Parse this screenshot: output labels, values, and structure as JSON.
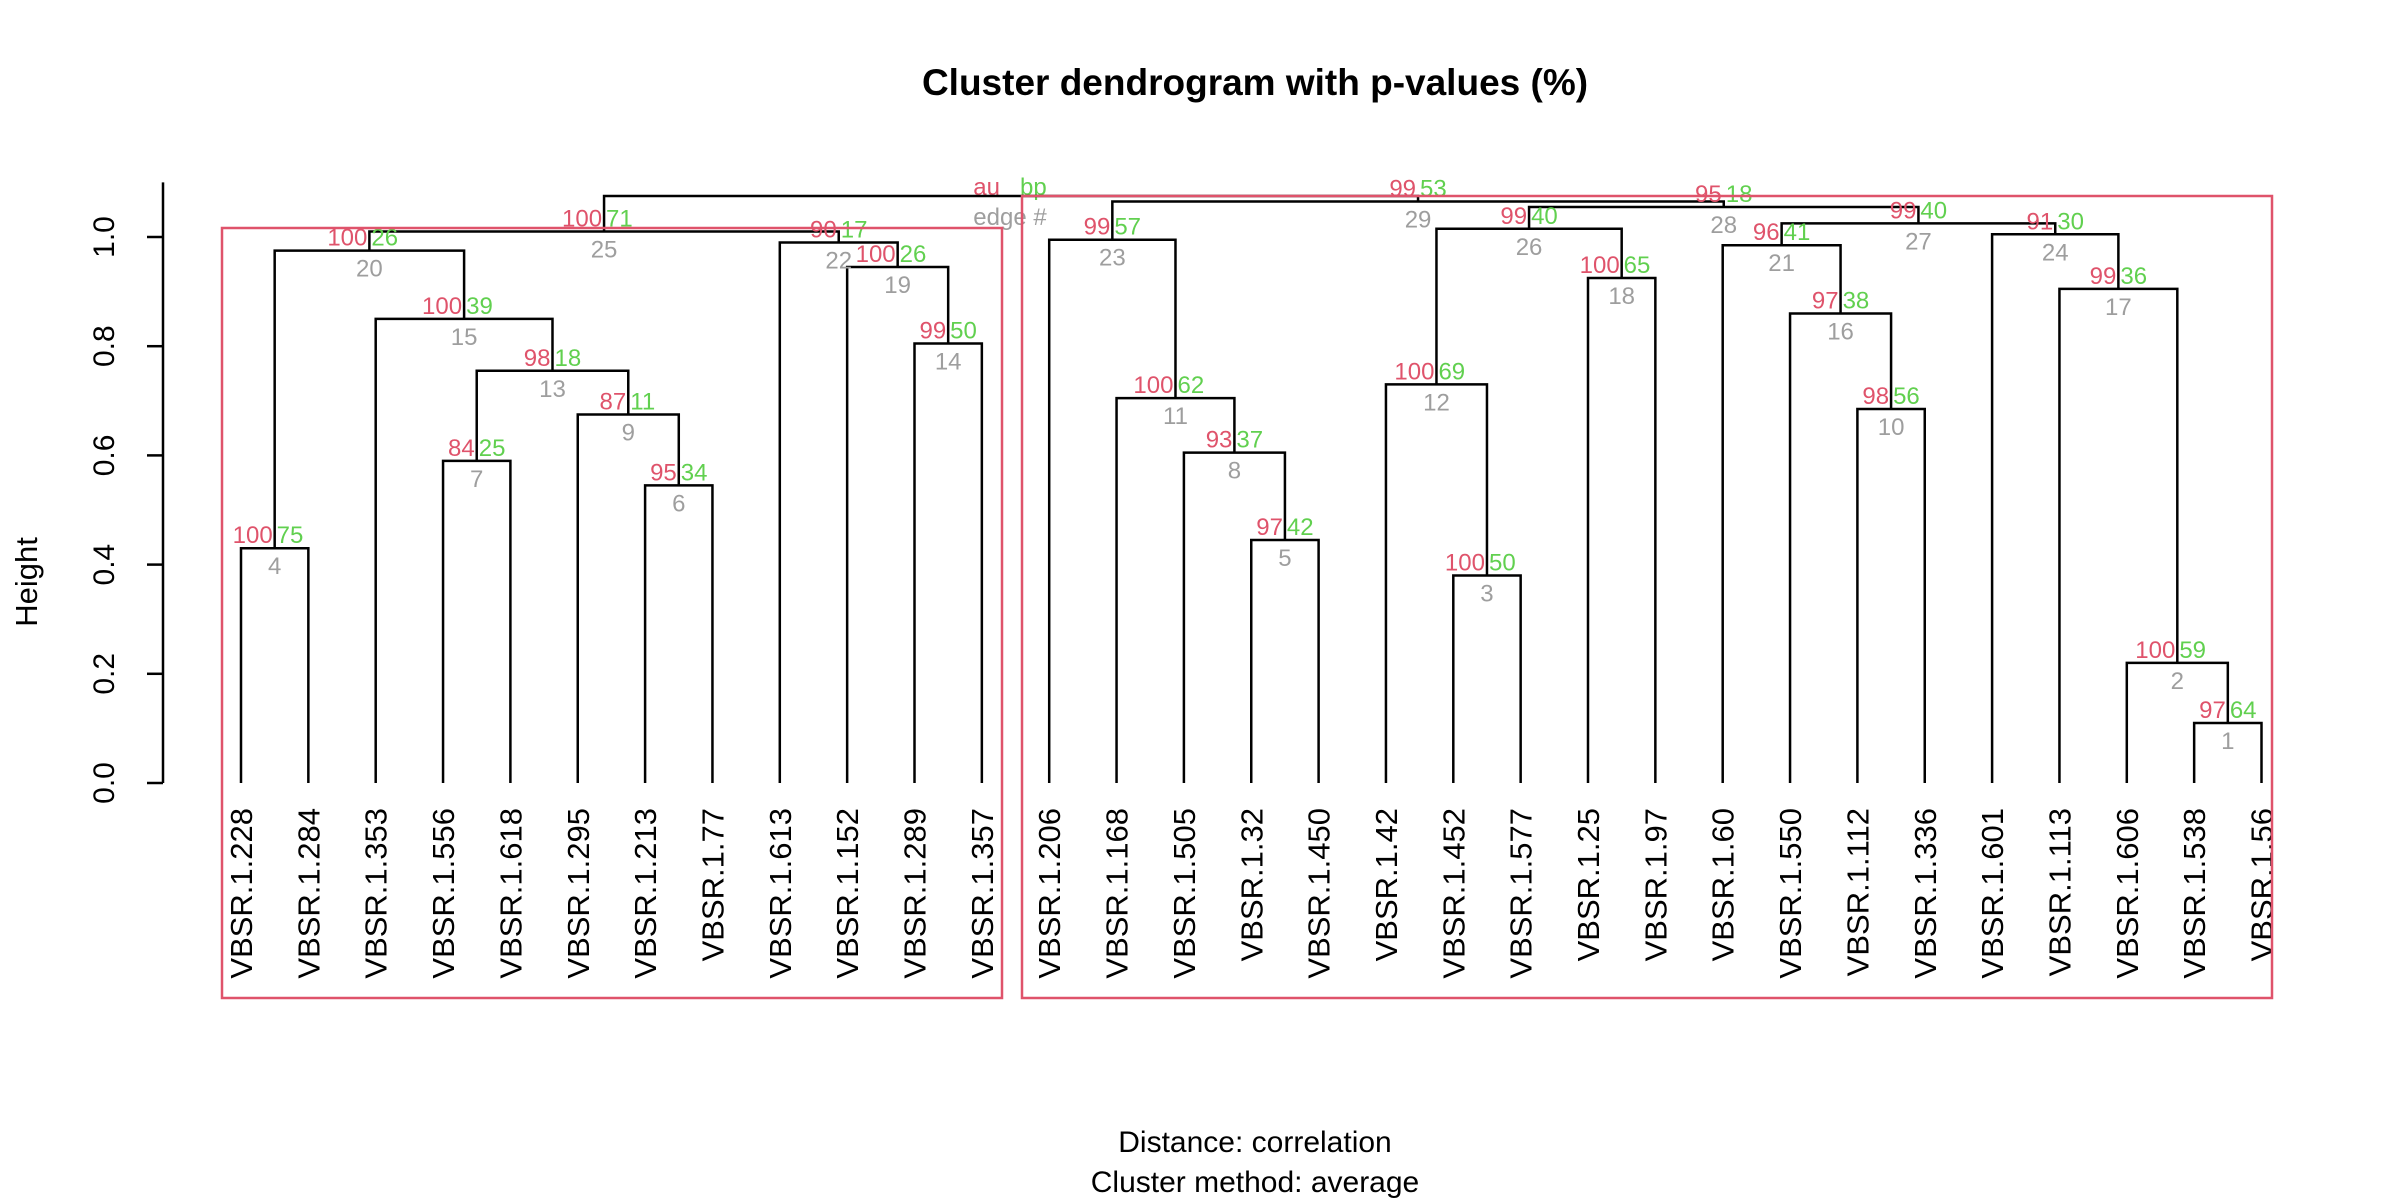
{
  "chart_data": {
    "type": "dendrogram",
    "title": "Cluster dendrogram with p-values (%)",
    "ylabel": "Height",
    "distance_label": "Distance:  correlation",
    "method_label": "Cluster method: average",
    "ylim": [
      0,
      1.1
    ],
    "yticks": [
      "0.0",
      "0.2",
      "0.4",
      "0.6",
      "0.8",
      "1.0"
    ],
    "legend": {
      "au": "au",
      "bp": "bp",
      "edge": "edge #"
    },
    "colors": {
      "au": "#DF536B",
      "bp": "#61D04F",
      "edge": "#9E9E9E",
      "box": "#DF536B",
      "line": "#000000"
    },
    "leaves": [
      "VBSR.1.228",
      "VBSR.1.284",
      "VBSR.1.353",
      "VBSR.1.556",
      "VBSR.1.618",
      "VBSR.1.295",
      "VBSR.1.213",
      "VBSR.1.77",
      "VBSR.1.613",
      "VBSR.1.152",
      "VBSR.1.289",
      "VBSR.1.357",
      "VBSR.1.206",
      "VBSR.1.168",
      "VBSR.1.505",
      "VBSR.1.32",
      "VBSR.1.450",
      "VBSR.1.42",
      "VBSR.1.452",
      "VBSR.1.577",
      "VBSR.1.25",
      "VBSR.1.97",
      "VBSR.1.60",
      "VBSR.1.550",
      "VBSR.1.112",
      "VBSR.1.336",
      "VBSR.1.601",
      "VBSR.1.113",
      "VBSR.1.606",
      "VBSR.1.538",
      "VBSR.1.56"
    ],
    "merges": [
      {
        "edge": "1",
        "left": -30,
        "right": -31,
        "height": 0.11,
        "au": "97",
        "bp": "64"
      },
      {
        "edge": "2",
        "left": -29,
        "right": 1,
        "height": 0.22,
        "au": "100",
        "bp": "59"
      },
      {
        "edge": "3",
        "left": -19,
        "right": -20,
        "height": 0.38,
        "au": "100",
        "bp": "50"
      },
      {
        "edge": "4",
        "left": -1,
        "right": -2,
        "height": 0.43,
        "au": "100",
        "bp": "75"
      },
      {
        "edge": "5",
        "left": -16,
        "right": -17,
        "height": 0.445,
        "au": "97",
        "bp": "42"
      },
      {
        "edge": "6",
        "left": -7,
        "right": -8,
        "height": 0.545,
        "au": "95",
        "bp": "34"
      },
      {
        "edge": "7",
        "left": -4,
        "right": -5,
        "height": 0.59,
        "au": "84",
        "bp": "25"
      },
      {
        "edge": "8",
        "left": -15,
        "right": 5,
        "height": 0.605,
        "au": "93",
        "bp": "37"
      },
      {
        "edge": "9",
        "left": -6,
        "right": 6,
        "height": 0.675,
        "au": "87",
        "bp": "11"
      },
      {
        "edge": "10",
        "left": -25,
        "right": -26,
        "height": 0.685,
        "au": "98",
        "bp": "56"
      },
      {
        "edge": "11",
        "left": -14,
        "right": 8,
        "height": 0.705,
        "au": "100",
        "bp": "62"
      },
      {
        "edge": "12",
        "left": -18,
        "right": 3,
        "height": 0.73,
        "au": "100",
        "bp": "69"
      },
      {
        "edge": "13",
        "left": 7,
        "right": 9,
        "height": 0.755,
        "au": "98",
        "bp": "18"
      },
      {
        "edge": "14",
        "left": -11,
        "right": -12,
        "height": 0.805,
        "au": "99",
        "bp": "50"
      },
      {
        "edge": "15",
        "left": -3,
        "right": 13,
        "height": 0.85,
        "au": "100",
        "bp": "39"
      },
      {
        "edge": "16",
        "left": -24,
        "right": 10,
        "height": 0.86,
        "au": "97",
        "bp": "38"
      },
      {
        "edge": "17",
        "left": -28,
        "right": 2,
        "height": 0.905,
        "au": "99",
        "bp": "36"
      },
      {
        "edge": "18",
        "left": -21,
        "right": -22,
        "height": 0.925,
        "au": "100",
        "bp": "65"
      },
      {
        "edge": "19",
        "left": -10,
        "right": 14,
        "height": 0.945,
        "au": "100",
        "bp": "26"
      },
      {
        "edge": "20",
        "left": 4,
        "right": 15,
        "height": 0.975,
        "au": "100",
        "bp": "26"
      },
      {
        "edge": "21",
        "left": -23,
        "right": 16,
        "height": 0.985,
        "au": "96",
        "bp": "41"
      },
      {
        "edge": "22",
        "left": -9,
        "right": 19,
        "height": 0.99,
        "au": "90",
        "bp": "17"
      },
      {
        "edge": "23",
        "left": -13,
        "right": 11,
        "height": 0.995,
        "au": "99",
        "bp": "57"
      },
      {
        "edge": "24",
        "left": -27,
        "right": 17,
        "height": 1.005,
        "au": "91",
        "bp": "30"
      },
      {
        "edge": "25",
        "left": 20,
        "right": 22,
        "height": 1.01,
        "au": "100",
        "bp": "71"
      },
      {
        "edge": "26",
        "left": 12,
        "right": 18,
        "height": 1.015,
        "au": "99",
        "bp": "40"
      },
      {
        "edge": "27",
        "left": 21,
        "right": 24,
        "height": 1.025,
        "au": "99",
        "bp": "40"
      },
      {
        "edge": "28",
        "left": 26,
        "right": 27,
        "height": 1.055,
        "au": "95",
        "bp": "18"
      },
      {
        "edge": "29",
        "left": 23,
        "right": 28,
        "height": 1.065,
        "au": "99",
        "bp": "53"
      },
      {
        "edge": "30",
        "left": 25,
        "right": 29,
        "height": 1.075,
        "au": "",
        "bp": ""
      }
    ],
    "rect_groups": [
      [
        1,
        12
      ],
      [
        13,
        31
      ]
    ]
  }
}
